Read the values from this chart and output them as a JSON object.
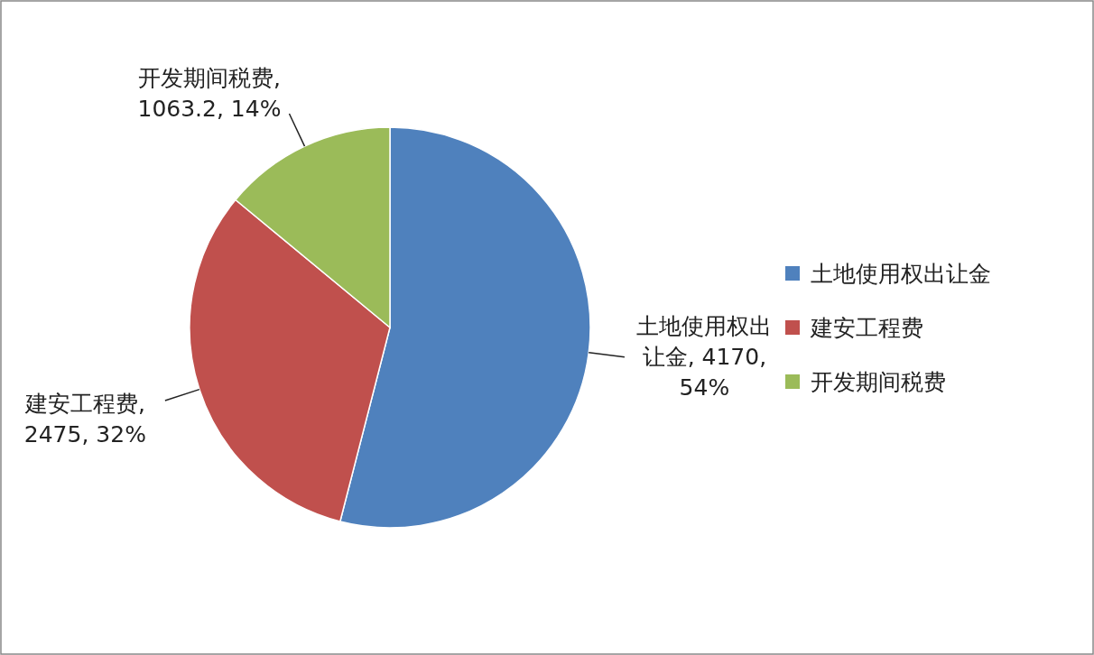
{
  "chart_data": {
    "type": "pie",
    "categories": [
      "土地使用权出让金",
      "建安工程费",
      "开发期间税费"
    ],
    "values": [
      54,
      32,
      14
    ],
    "value_labels": [
      "土地使用权出让金, 4170, 54%",
      "建安工程费, 2475, 32%",
      "开发期间税费, 1063.2, 14%"
    ],
    "colors": [
      "#4f81bd",
      "#c0504d",
      "#9bbb59"
    ],
    "legend": "right"
  }
}
